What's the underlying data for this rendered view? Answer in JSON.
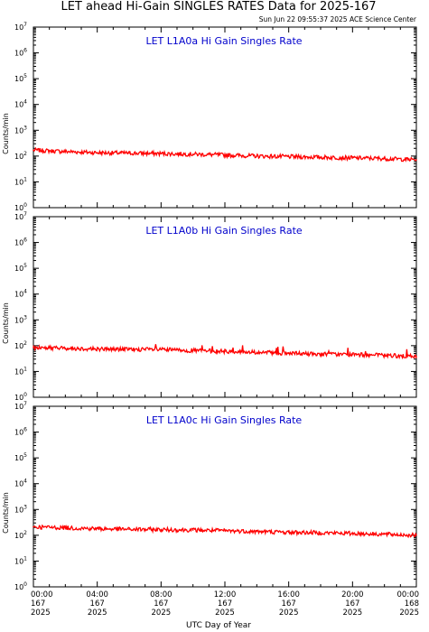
{
  "title": "LET ahead Hi-Gain SINGLES RATES Data for 2025-167",
  "timestamp": "Sun Jun 22 09:55:37 2025 ACE Science Center",
  "xlabel": "UTC Day of Year",
  "ylabel": "Counts/min",
  "colors": {
    "series": "#ff0000",
    "panel_label": "#0000cc",
    "axis": "#000000"
  },
  "x_ticks": [
    {
      "time": "00:00",
      "day": "167",
      "year": "2025"
    },
    {
      "time": "04:00",
      "day": "167",
      "year": "2025"
    },
    {
      "time": "08:00",
      "day": "167",
      "year": "2025"
    },
    {
      "time": "12:00",
      "day": "167",
      "year": "2025"
    },
    {
      "time": "16:00",
      "day": "167",
      "year": "2025"
    },
    {
      "time": "20:00",
      "day": "167",
      "year": "2025"
    },
    {
      "time": "00:00",
      "day": "168",
      "year": "2025"
    }
  ],
  "y_ticks": [
    {
      "base": "10",
      "exp": "0"
    },
    {
      "base": "10",
      "exp": "1"
    },
    {
      "base": "10",
      "exp": "2"
    },
    {
      "base": "10",
      "exp": "3"
    },
    {
      "base": "10",
      "exp": "4"
    },
    {
      "base": "10",
      "exp": "5"
    },
    {
      "base": "10",
      "exp": "6"
    },
    {
      "base": "10",
      "exp": "7"
    }
  ],
  "chart_data": [
    {
      "type": "line",
      "label": "LET L1A0a Hi Gain Singles Rate",
      "yscale": "log",
      "ylim": [
        1,
        10000000
      ],
      "xlim_hours": [
        0,
        24
      ],
      "x_hours": [
        0,
        2,
        4,
        6,
        8,
        10,
        12,
        14,
        16,
        18,
        20,
        22,
        24
      ],
      "values": [
        170,
        150,
        135,
        130,
        125,
        118,
        110,
        100,
        95,
        90,
        85,
        80,
        72
      ]
    },
    {
      "type": "line",
      "label": "LET L1A0b Hi Gain Singles Rate",
      "yscale": "log",
      "ylim": [
        1,
        10000000
      ],
      "xlim_hours": [
        0,
        24
      ],
      "x_hours": [
        0,
        2,
        4,
        6,
        8,
        10,
        12,
        14,
        16,
        18,
        20,
        22,
        24
      ],
      "values": [
        85,
        80,
        75,
        72,
        70,
        65,
        60,
        55,
        50,
        47,
        45,
        42,
        38
      ]
    },
    {
      "type": "line",
      "label": "LET L1A0c Hi Gain Singles Rate",
      "yscale": "log",
      "ylim": [
        1,
        10000000
      ],
      "xlim_hours": [
        0,
        24
      ],
      "x_hours": [
        0,
        2,
        4,
        6,
        8,
        10,
        12,
        14,
        16,
        18,
        20,
        22,
        24
      ],
      "values": [
        210,
        195,
        180,
        170,
        165,
        160,
        150,
        140,
        130,
        125,
        118,
        110,
        100
      ]
    }
  ]
}
